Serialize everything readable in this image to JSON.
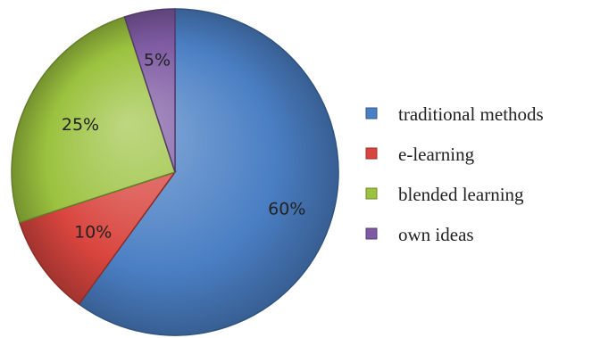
{
  "chart_data": {
    "type": "pie",
    "categories": [
      "traditional methods",
      "e-learning",
      "blended learning",
      "own ideas"
    ],
    "values": [
      60,
      10,
      25,
      5
    ],
    "labels": [
      "60%",
      "10%",
      "25%",
      "5%"
    ],
    "colors": [
      "#4a7fc4",
      "#d9453e",
      "#9bc23f",
      "#7e5aa2"
    ],
    "title": "",
    "legend_position": "right",
    "start_angle_deg": 0,
    "direction": "clockwise",
    "style": "3d-shaded"
  }
}
